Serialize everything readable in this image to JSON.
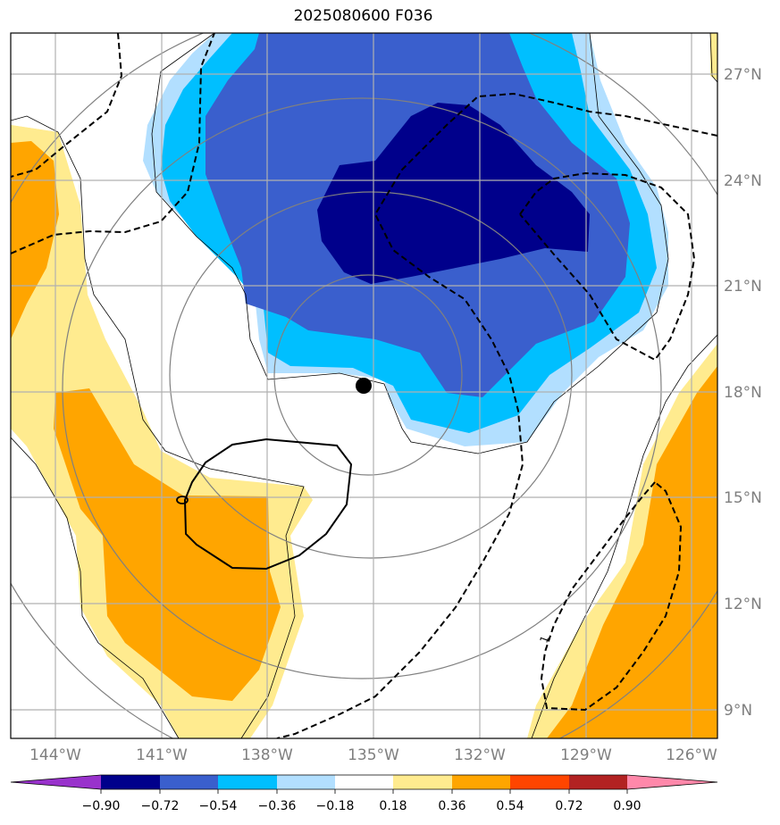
{
  "title": "2025080600 F036",
  "colors": {
    "deep_purple": "#9932cc",
    "navy": "#00008b",
    "royal_blue": "#3a5fcd",
    "sky_blue": "#00bfff",
    "light_blue": "#b2dfff",
    "white": "#ffffff",
    "light_yellow": "#ffeb8f",
    "orange": "#ffa500",
    "orange_red": "#ff4500",
    "firebrick": "#b22222",
    "pink": "#ff88aa"
  },
  "lon_labels": [
    "144°W",
    "141°W",
    "138°W",
    "135°W",
    "132°W",
    "129°W",
    "126°W"
  ],
  "lat_labels": [
    "27°N",
    "24°N",
    "21°N",
    "18°N",
    "15°N",
    "12°N",
    "9°N"
  ],
  "colorbar_labels": [
    "−0.90",
    "−0.72",
    "−0.54",
    "−0.36",
    "−0.18",
    "0.18",
    "0.36",
    "0.54",
    "0.72",
    "0.90"
  ],
  "contour_label": "1",
  "center_marker": {
    "lon": -135.3,
    "lat": 18.2
  }
}
